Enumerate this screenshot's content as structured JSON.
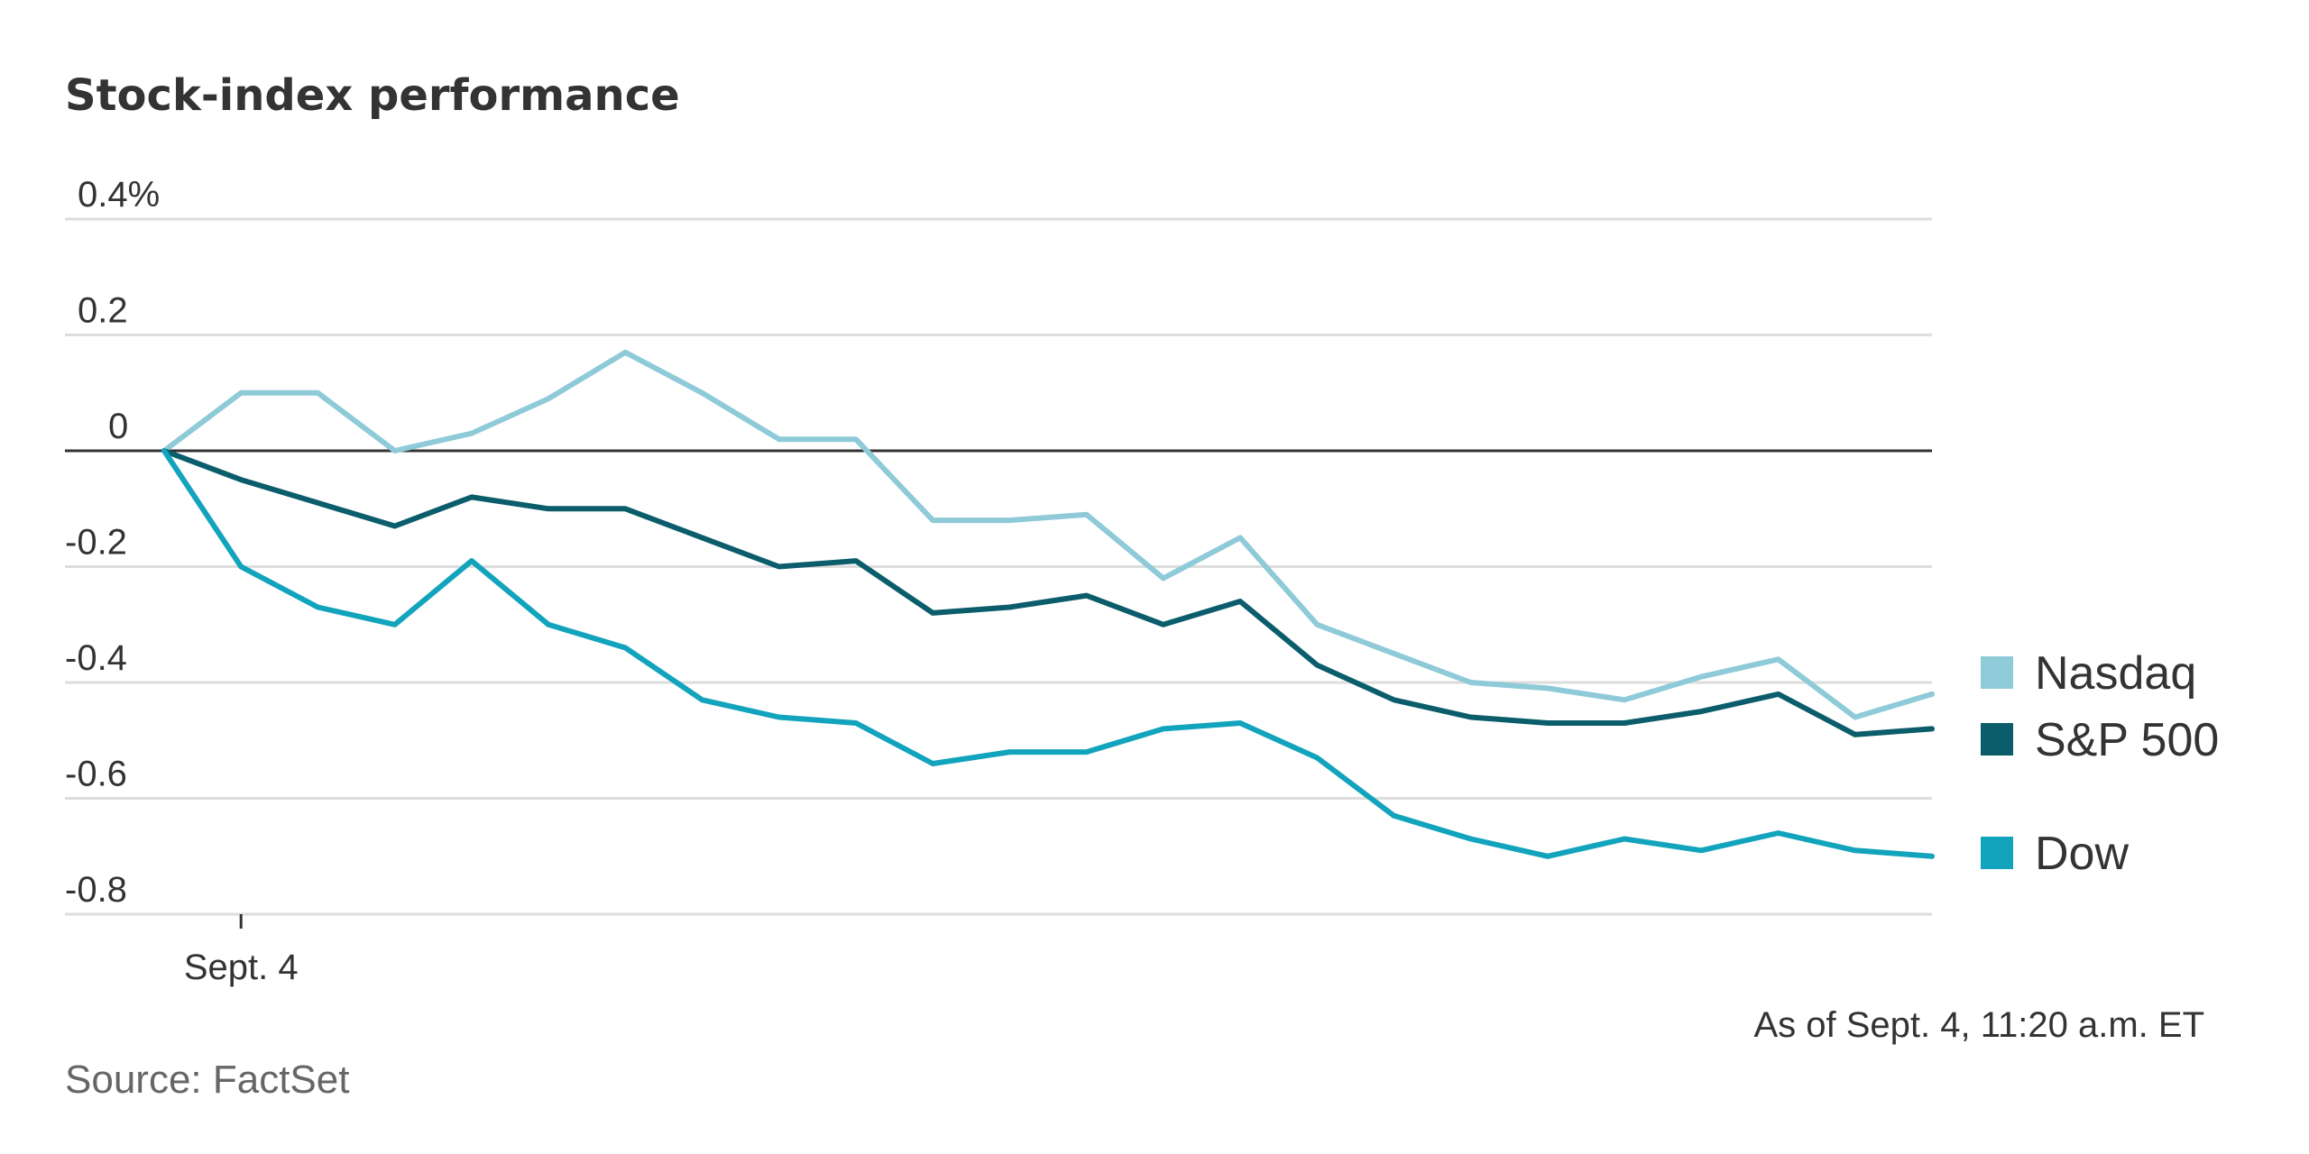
{
  "chart_data": {
    "type": "line",
    "title": "Stock-index performance",
    "xlabel": "",
    "ylabel": "",
    "x_tick_labels": [
      {
        "label": "Sept. 4",
        "index": 1
      }
    ],
    "y_ticks": [
      {
        "value": 0.4,
        "label": "0.4%"
      },
      {
        "value": 0.2,
        "label": "0.2"
      },
      {
        "value": 0,
        "label": "0"
      },
      {
        "value": -0.2,
        "label": "-0.2"
      },
      {
        "value": -0.4,
        "label": "-0.4"
      },
      {
        "value": -0.6,
        "label": "-0.6"
      },
      {
        "value": -0.8,
        "label": "-0.8"
      }
    ],
    "ylim": [
      -0.8,
      0.4
    ],
    "grid": true,
    "legend_position": "right",
    "note": "As of Sept. 4, 11:20 a.m. ET",
    "source": "Source: FactSet",
    "series": [
      {
        "name": "Nasdaq",
        "color": "#8ecad8",
        "values": [
          0,
          0.1,
          0.1,
          0,
          0.03,
          0.09,
          0.17,
          0.1,
          0.02,
          0.02,
          -0.12,
          -0.12,
          -0.11,
          -0.22,
          -0.15,
          -0.3,
          -0.35,
          -0.4,
          -0.41,
          -0.43,
          -0.39,
          -0.36,
          -0.46,
          -0.42
        ]
      },
      {
        "name": "S&P 500",
        "color": "#0b5d6b",
        "values": [
          0,
          -0.05,
          -0.09,
          -0.13,
          -0.08,
          -0.1,
          -0.1,
          -0.15,
          -0.2,
          -0.19,
          -0.28,
          -0.27,
          -0.25,
          -0.3,
          -0.26,
          -0.37,
          -0.43,
          -0.46,
          -0.47,
          -0.47,
          -0.45,
          -0.42,
          -0.49,
          -0.48
        ]
      },
      {
        "name": "Dow",
        "color": "#12a3bd",
        "values": [
          0,
          -0.2,
          -0.27,
          -0.3,
          -0.19,
          -0.3,
          -0.34,
          -0.43,
          -0.46,
          -0.47,
          -0.54,
          -0.52,
          -0.52,
          -0.48,
          -0.47,
          -0.53,
          -0.63,
          -0.67,
          -0.7,
          -0.67,
          -0.69,
          -0.66,
          -0.69,
          -0.7
        ]
      }
    ]
  }
}
